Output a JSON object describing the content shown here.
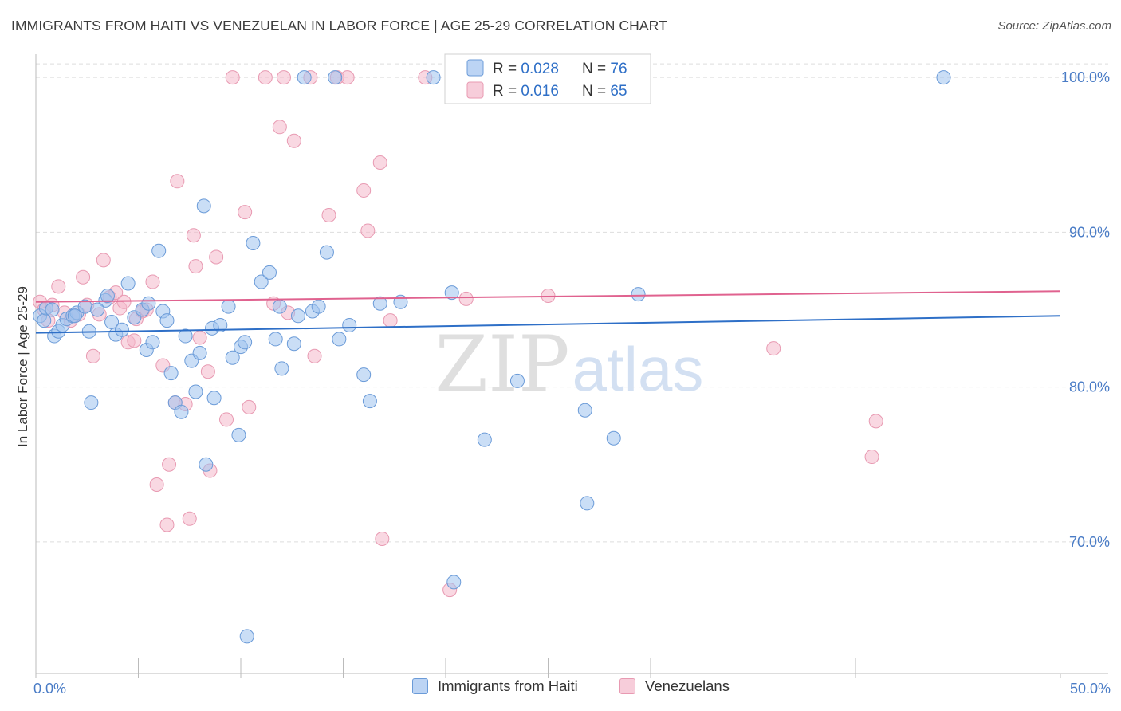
{
  "title": "IMMIGRANTS FROM HAITI VS VENEZUELAN IN LABOR FORCE | AGE 25-29 CORRELATION CHART",
  "source": "Source: ZipAtlas.com",
  "watermark": {
    "zip": "ZIP",
    "atlas": "atlas"
  },
  "colors": {
    "haiti_fill": "#9fc2ef",
    "haiti_stroke": "#6b9bd8",
    "haiti_line": "#2e6fc7",
    "ven_fill": "#f4b8cb",
    "ven_stroke": "#e89ab2",
    "ven_line": "#e0628f",
    "tick_label": "#4a7cc6",
    "grid": "#dddddd",
    "axis": "#bbbbbb"
  },
  "legend": {
    "rows": [
      {
        "r_label": "R = ",
        "r_value": "0.028",
        "n_label": "N = ",
        "n_value": "76"
      },
      {
        "r_label": "R = ",
        "r_value": "0.016",
        "n_label": "N = ",
        "n_value": "65"
      }
    ]
  },
  "chart_data": {
    "type": "scatter",
    "title": "IMMIGRANTS FROM HAITI VS VENEZUELAN IN LABOR FORCE | AGE 25-29 CORRELATION CHART",
    "xlabel": "",
    "ylabel": "In Labor Force | Age 25-29",
    "xlim": [
      0,
      50
    ],
    "ylim": [
      61.5,
      101.5
    ],
    "x_tick_labels": [
      "0.0%",
      "50.0%"
    ],
    "y_ticks": [
      70,
      80,
      90,
      100
    ],
    "y_tick_labels": [
      "70.0%",
      "80.0%",
      "90.0%",
      "100.0%"
    ],
    "grid": true,
    "legend_placement": "top-center",
    "series": [
      {
        "name": "Immigrants from Haiti",
        "r": 0.028,
        "n": 76,
        "trend": {
          "x": [
            0,
            50
          ],
          "y": [
            83.5,
            84.6
          ]
        },
        "points": [
          [
            0.2,
            84.6
          ],
          [
            0.4,
            84.3
          ],
          [
            0.5,
            85.1
          ],
          [
            0.9,
            83.3
          ],
          [
            1.1,
            83.6
          ],
          [
            1.3,
            84.0
          ],
          [
            1.5,
            84.4
          ],
          [
            1.8,
            84.6
          ],
          [
            2.0,
            84.8
          ],
          [
            2.4,
            85.2
          ],
          [
            2.6,
            83.6
          ],
          [
            2.7,
            79.0
          ],
          [
            3.4,
            85.6
          ],
          [
            3.5,
            85.9
          ],
          [
            3.7,
            84.2
          ],
          [
            3.9,
            83.4
          ],
          [
            4.2,
            83.7
          ],
          [
            4.5,
            86.7
          ],
          [
            4.8,
            84.5
          ],
          [
            5.2,
            85.0
          ],
          [
            5.4,
            82.4
          ],
          [
            5.5,
            85.4
          ],
          [
            5.7,
            82.9
          ],
          [
            6.0,
            88.8
          ],
          [
            6.2,
            84.9
          ],
          [
            6.4,
            84.3
          ],
          [
            6.6,
            80.9
          ],
          [
            6.8,
            79.0
          ],
          [
            7.1,
            78.4
          ],
          [
            7.3,
            83.3
          ],
          [
            7.6,
            81.7
          ],
          [
            7.8,
            79.7
          ],
          [
            8.0,
            82.2
          ],
          [
            8.2,
            91.7
          ],
          [
            8.3,
            75.0
          ],
          [
            8.6,
            83.8
          ],
          [
            8.7,
            79.3
          ],
          [
            9.0,
            84.0
          ],
          [
            9.4,
            85.2
          ],
          [
            9.6,
            81.9
          ],
          [
            9.9,
            76.9
          ],
          [
            10.0,
            82.6
          ],
          [
            10.2,
            82.9
          ],
          [
            10.6,
            89.3
          ],
          [
            11.0,
            86.8
          ],
          [
            11.4,
            87.4
          ],
          [
            11.7,
            83.1
          ],
          [
            11.9,
            85.2
          ],
          [
            12.0,
            81.2
          ],
          [
            12.6,
            82.8
          ],
          [
            12.8,
            84.6
          ],
          [
            13.1,
            100.0
          ],
          [
            13.5,
            84.9
          ],
          [
            13.8,
            85.2
          ],
          [
            14.6,
            100.0
          ],
          [
            14.2,
            88.7
          ],
          [
            14.8,
            83.1
          ],
          [
            15.3,
            84.0
          ],
          [
            16.0,
            80.8
          ],
          [
            16.3,
            79.1
          ],
          [
            16.8,
            85.4
          ],
          [
            17.8,
            85.5
          ],
          [
            19.4,
            100.0
          ],
          [
            20.3,
            86.1
          ],
          [
            21.9,
            76.6
          ],
          [
            20.4,
            67.4
          ],
          [
            23.5,
            80.4
          ],
          [
            26.8,
            78.5
          ],
          [
            26.9,
            72.5
          ],
          [
            28.2,
            76.7
          ],
          [
            29.4,
            86.0
          ],
          [
            44.3,
            100.0
          ],
          [
            10.3,
            63.9
          ],
          [
            0.8,
            85.0
          ],
          [
            1.9,
            84.6
          ],
          [
            3.0,
            85.0
          ]
        ]
      },
      {
        "name": "Venezuelans",
        "r": 0.016,
        "n": 65,
        "trend": {
          "x": [
            0,
            50
          ],
          "y": [
            85.5,
            86.2
          ]
        },
        "points": [
          [
            0.2,
            85.5
          ],
          [
            0.4,
            85.0
          ],
          [
            0.6,
            84.3
          ],
          [
            0.8,
            85.3
          ],
          [
            1.1,
            86.5
          ],
          [
            1.4,
            84.8
          ],
          [
            1.7,
            84.3
          ],
          [
            1.9,
            84.6
          ],
          [
            2.1,
            84.7
          ],
          [
            2.3,
            87.1
          ],
          [
            2.5,
            85.3
          ],
          [
            2.8,
            82.0
          ],
          [
            3.3,
            88.2
          ],
          [
            3.6,
            85.8
          ],
          [
            3.9,
            86.1
          ],
          [
            4.1,
            85.1
          ],
          [
            4.3,
            85.5
          ],
          [
            4.5,
            82.9
          ],
          [
            4.8,
            83.0
          ],
          [
            4.9,
            84.4
          ],
          [
            5.2,
            84.9
          ],
          [
            5.4,
            85.0
          ],
          [
            5.7,
            86.8
          ],
          [
            5.9,
            73.7
          ],
          [
            6.2,
            81.4
          ],
          [
            6.4,
            71.1
          ],
          [
            6.5,
            75.0
          ],
          [
            6.8,
            79.0
          ],
          [
            6.9,
            93.3
          ],
          [
            7.3,
            78.9
          ],
          [
            7.5,
            71.5
          ],
          [
            7.7,
            89.8
          ],
          [
            7.8,
            87.8
          ],
          [
            8.0,
            83.2
          ],
          [
            8.4,
            81.0
          ],
          [
            8.5,
            74.6
          ],
          [
            8.8,
            88.4
          ],
          [
            9.3,
            77.9
          ],
          [
            9.6,
            100.0
          ],
          [
            10.2,
            91.3
          ],
          [
            10.4,
            78.7
          ],
          [
            11.6,
            85.4
          ],
          [
            11.9,
            96.8
          ],
          [
            12.1,
            100.0
          ],
          [
            12.3,
            84.8
          ],
          [
            12.6,
            95.9
          ],
          [
            13.4,
            100.0
          ],
          [
            13.6,
            82.0
          ],
          [
            14.3,
            91.1
          ],
          [
            14.7,
            100.0
          ],
          [
            15.2,
            100.0
          ],
          [
            16.0,
            92.7
          ],
          [
            16.2,
            90.1
          ],
          [
            16.8,
            94.5
          ],
          [
            16.9,
            70.2
          ],
          [
            17.3,
            84.3
          ],
          [
            19.0,
            100.0
          ],
          [
            20.2,
            66.9
          ],
          [
            21.0,
            85.7
          ],
          [
            25.0,
            85.9
          ],
          [
            36.0,
            82.5
          ],
          [
            40.8,
            75.5
          ],
          [
            41.0,
            77.8
          ],
          [
            11.2,
            100.0
          ],
          [
            3.1,
            84.7
          ]
        ]
      }
    ]
  },
  "bottom_legend": [
    {
      "label": "Immigrants from Haiti"
    },
    {
      "label": "Venezuelans"
    }
  ]
}
